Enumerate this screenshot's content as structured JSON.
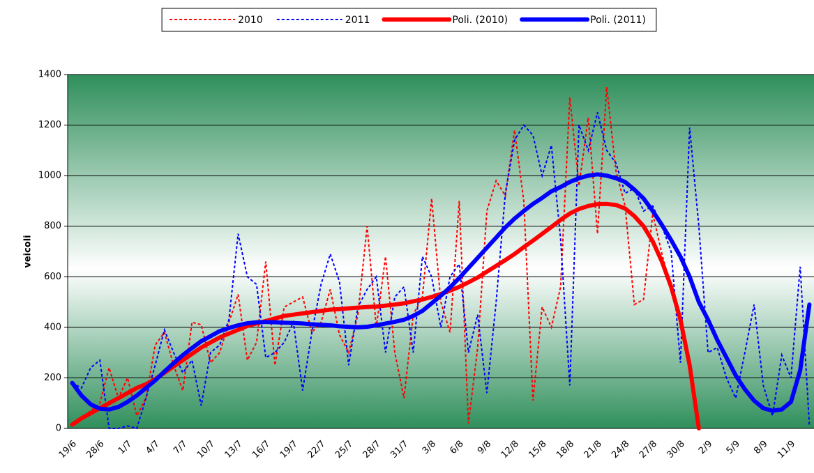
{
  "chart_data": {
    "type": "line",
    "ylabel": "veicoli",
    "categories": [
      "19/6",
      null,
      null,
      "28/6",
      null,
      null,
      "1/7",
      null,
      null,
      "4/7",
      null,
      null,
      "7/7",
      null,
      null,
      "10/7",
      null,
      null,
      "13/7",
      null,
      null,
      "16/7",
      null,
      null,
      "19/7",
      null,
      null,
      "22/7",
      null,
      null,
      "25/7",
      null,
      null,
      "28/7",
      null,
      null,
      "31/7",
      null,
      null,
      "3/8",
      null,
      null,
      "6/8",
      null,
      null,
      "9/8",
      null,
      null,
      "12/8",
      null,
      null,
      "15/8",
      null,
      null,
      "18/8",
      null,
      null,
      "21/8",
      null,
      null,
      "24/8",
      null,
      null,
      "27/8",
      null,
      null,
      "30/8",
      null,
      null,
      "2/9",
      null,
      null,
      "5/9",
      null,
      null,
      "8/9",
      null,
      null,
      "11/9",
      null,
      null
    ],
    "series": [
      {
        "name": "2010",
        "color": "#ff0000",
        "style": "dashed",
        "values": [
          15,
          40,
          70,
          100,
          240,
          120,
          200,
          50,
          120,
          330,
          380,
          250,
          150,
          420,
          410,
          260,
          300,
          420,
          530,
          270,
          340,
          660,
          250,
          480,
          500,
          520,
          380,
          420,
          550,
          370,
          300,
          450,
          800,
          400,
          680,
          300,
          120,
          450,
          520,
          910,
          500,
          380,
          900,
          20,
          320,
          860,
          980,
          920,
          1180,
          900,
          110,
          480,
          400,
          560,
          1310,
          960,
          1230,
          770,
          1350,
          1020,
          880,
          490,
          510,
          850,
          690,
          550,
          420,
          250,
          null,
          null,
          null,
          null,
          null,
          null,
          null,
          null,
          null,
          null,
          null,
          null,
          null
        ]
      },
      {
        "name": "2011",
        "color": "#0000ff",
        "style": "dashed",
        "values": [
          180,
          160,
          240,
          270,
          0,
          0,
          10,
          0,
          120,
          250,
          390,
          300,
          220,
          270,
          90,
          300,
          330,
          430,
          770,
          600,
          570,
          280,
          300,
          340,
          420,
          150,
          380,
          570,
          690,
          580,
          250,
          480,
          550,
          600,
          300,
          520,
          560,
          300,
          680,
          600,
          400,
          600,
          650,
          300,
          450,
          140,
          500,
          930,
          1140,
          1200,
          1160,
          1000,
          1120,
          750,
          170,
          1200,
          1100,
          1250,
          1100,
          1050,
          930,
          950,
          860,
          880,
          800,
          700,
          260,
          1190,
          800,
          300,
          320,
          200,
          120,
          300,
          490,
          170,
          50,
          290,
          200,
          640,
          10
        ]
      },
      {
        "name": "Poli. (2010)",
        "color": "#ff0000",
        "style": "solid",
        "values": [
          15,
          40,
          60,
          80,
          100,
          120,
          140,
          160,
          175,
          195,
          220,
          245,
          270,
          295,
          320,
          340,
          360,
          375,
          390,
          405,
          415,
          425,
          435,
          445,
          450,
          455,
          460,
          465,
          470,
          472,
          475,
          478,
          480,
          482,
          486,
          490,
          495,
          503,
          510,
          520,
          532,
          545,
          560,
          578,
          597,
          620,
          643,
          666,
          690,
          717,
          743,
          770,
          797,
          825,
          850,
          868,
          880,
          887,
          888,
          884,
          870,
          840,
          800,
          740,
          660,
          560,
          430,
          250,
          0,
          null,
          null,
          null,
          null,
          null,
          null,
          null,
          null,
          null,
          null,
          null,
          null
        ]
      },
      {
        "name": "Poli. (2011)",
        "color": "#0000ff",
        "style": "solid",
        "values": [
          180,
          130,
          95,
          78,
          75,
          85,
          105,
          130,
          160,
          190,
          225,
          258,
          290,
          318,
          345,
          365,
          385,
          397,
          408,
          416,
          420,
          421,
          420,
          418,
          417,
          415,
          412,
          410,
          408,
          404,
          402,
          400,
          402,
          408,
          415,
          422,
          430,
          445,
          465,
          495,
          525,
          558,
          595,
          635,
          675,
          715,
          755,
          795,
          830,
          860,
          888,
          912,
          938,
          955,
          975,
          990,
          1000,
          1005,
          1000,
          990,
          975,
          945,
          910,
          860,
          805,
          745,
          680,
          600,
          500,
          430,
          350,
          280,
          210,
          155,
          110,
          80,
          70,
          75,
          105,
          230,
          490
        ]
      }
    ],
    "ylim": [
      0,
      1400
    ],
    "yticks": [
      0,
      200,
      400,
      600,
      800,
      1000,
      1200,
      1400
    ],
    "grid": true,
    "legend": "top"
  }
}
